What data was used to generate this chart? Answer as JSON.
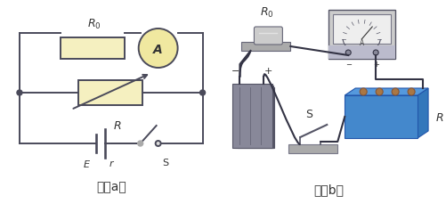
{
  "bg_color": "#ffffff",
  "fig_width": 5.01,
  "fig_height": 2.3,
  "dpi": 100,
  "caption_a": "图（a）",
  "caption_b": "图（b）",
  "label_R0_a": "$R_0$",
  "label_A": "A",
  "label_R_a": "$R$",
  "label_E": "$E$",
  "label_r": "$r$",
  "label_S_a": "S",
  "label_R0_b": "$R_0$",
  "label_S_b": "S",
  "label_R_b": "$R$",
  "label_minus": "−",
  "label_plus": "+",
  "circuit_color": "#4a4a5a",
  "resistor_fill": "#f5f0c0",
  "ammeter_fill": "#f0e8a0",
  "wire_color": "#4a4a5a"
}
